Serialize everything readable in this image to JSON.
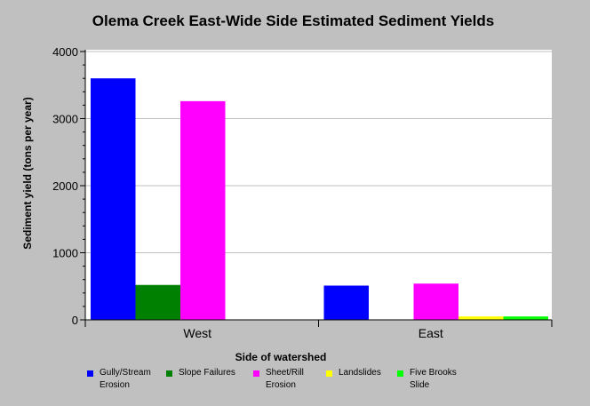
{
  "chart_data": {
    "type": "bar",
    "title": "Olema Creek East-Wide Side Estimated Sediment Yields",
    "xlabel": "Side of watershed",
    "ylabel": "Sediment yield (tons per year)",
    "categories": [
      "West",
      "East"
    ],
    "ylim": [
      0,
      4000
    ],
    "yticks": [
      "0",
      "1000",
      "2000",
      "3000",
      "4000"
    ],
    "grid": true,
    "legend_position": "bottom",
    "series": [
      {
        "name": "Gully/Stream Erosion",
        "color": "#0000ff",
        "values": [
          3600,
          510
        ]
      },
      {
        "name": "Slope Failures",
        "color": "#008000",
        "values": [
          520,
          0
        ]
      },
      {
        "name": "Sheet/Rill Erosion",
        "color": "#ff00ff",
        "values": [
          3260,
          540
        ]
      },
      {
        "name": "Landslides",
        "color": "#ffff00",
        "values": [
          0,
          50
        ]
      },
      {
        "name": "Five Brooks Slide",
        "color": "#00ff00",
        "values": [
          0,
          50
        ]
      }
    ],
    "legend_labels": [
      "Gully/Stream\nErosion",
      "Slope Failures",
      "Sheet/Rill\nErosion",
      "Landslides",
      "Five Brooks\nSlide"
    ]
  }
}
